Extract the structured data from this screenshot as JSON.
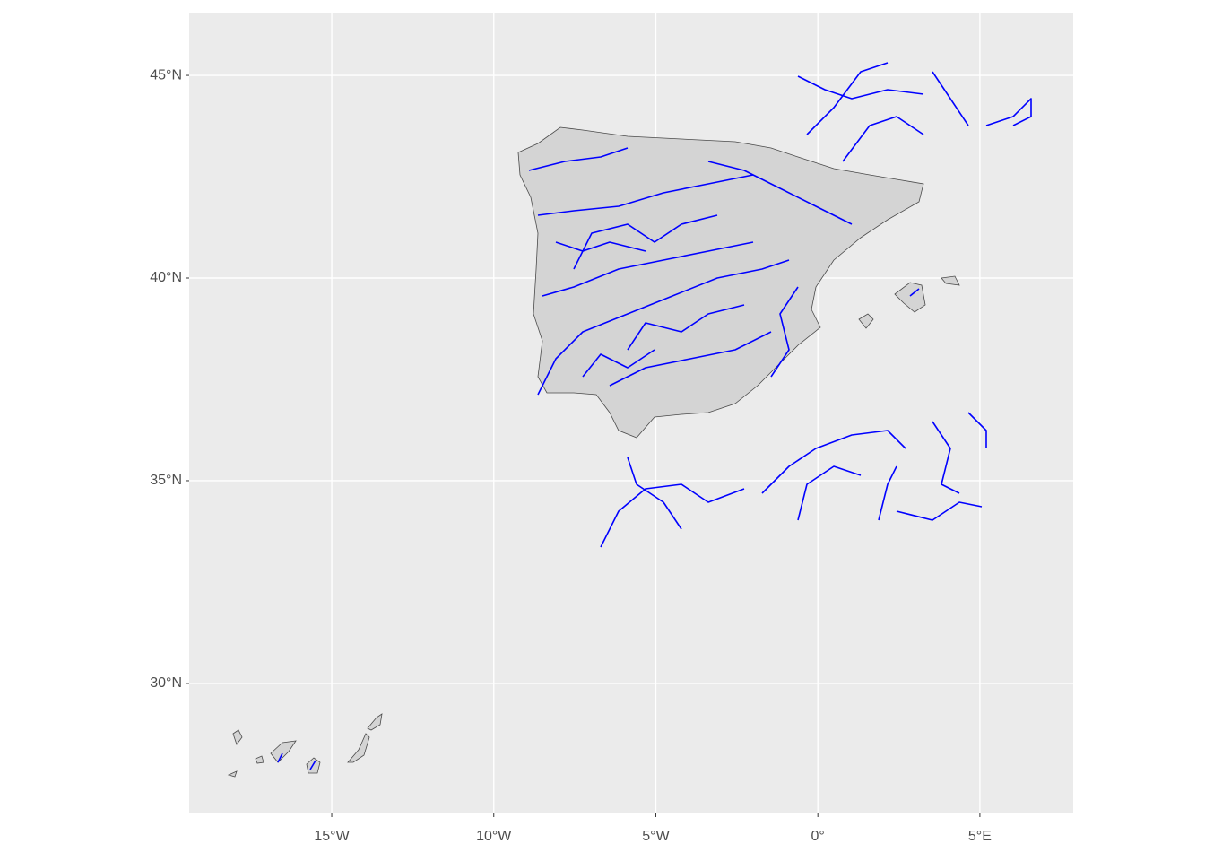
{
  "chart_data": {
    "type": "map",
    "xlim": [
      -19.4,
      7.88
    ],
    "ylim": [
      26.79,
      46.55
    ],
    "xticks": [
      {
        "value": -15,
        "label": "15°W"
      },
      {
        "value": -10,
        "label": "10°W"
      },
      {
        "value": -5,
        "label": "5°W"
      },
      {
        "value": 0,
        "label": "0°"
      },
      {
        "value": 5,
        "label": "5°E"
      }
    ],
    "yticks": [
      {
        "value": 30,
        "label": "30°N"
      },
      {
        "value": 35,
        "label": "35°N"
      },
      {
        "value": 40,
        "label": "40°N"
      },
      {
        "value": 45,
        "label": "45°N"
      }
    ],
    "grid": true
  }
}
